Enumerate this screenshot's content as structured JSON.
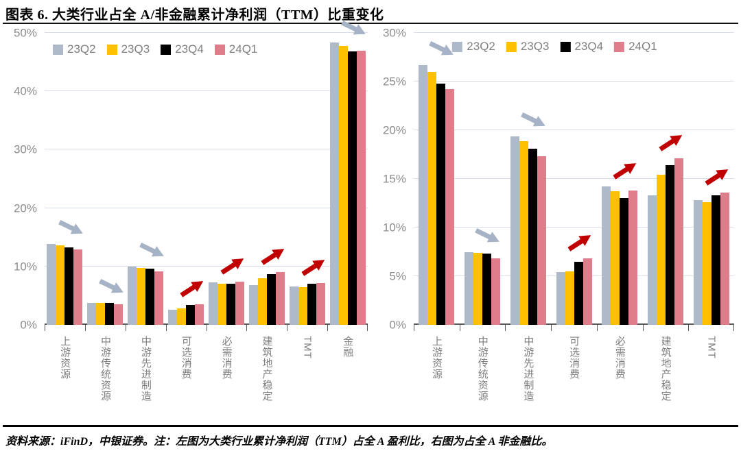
{
  "title": "图表 6. 大类行业占全 A/非金融累计净利润（TTM）比重变化",
  "source_note": "资料来源：iFinD，中银证券。注：左图为大类行业累计净利润（TTM）占全 A 盈利比，右图为占全 A 非金融比。",
  "colors": {
    "grid": "#D8DEE9",
    "axis": "#595959",
    "tick_label": "#8C8C8C",
    "legend_label": "#808080",
    "up_arrow": "#C00000",
    "down_arrow": "#A6B2C6"
  },
  "chart_data": [
    {
      "type": "bar",
      "position": "left",
      "ylim": [
        0,
        50
      ],
      "yticks": [
        "0%",
        "10%",
        "20%",
        "30%",
        "40%",
        "50%"
      ],
      "ytick_values": [
        0,
        10,
        20,
        30,
        40,
        50
      ],
      "grid": true,
      "legend_position": "top-left",
      "categories": [
        "上游资源",
        "中游传统资源",
        "中游先进制造",
        "可选消费",
        "必需消费",
        "建筑地产稳定",
        "TMT",
        "金融"
      ],
      "series": [
        {
          "name": "23Q2",
          "color": "#AEB9CA",
          "values": [
            13.8,
            3.7,
            10.0,
            2.6,
            7.3,
            6.8,
            6.6,
            48.3
          ]
        },
        {
          "name": "23Q3",
          "color": "#FFC000",
          "values": [
            13.6,
            3.7,
            9.8,
            2.8,
            7.1,
            8.0,
            6.5,
            47.8
          ]
        },
        {
          "name": "23Q4",
          "color": "#000000",
          "values": [
            13.3,
            3.8,
            9.6,
            3.4,
            7.0,
            8.7,
            7.0,
            46.8
          ]
        },
        {
          "name": "24Q1",
          "color": "#DF7E8A",
          "values": [
            12.9,
            3.5,
            9.1,
            3.5,
            7.4,
            9.0,
            7.2,
            46.9
          ]
        }
      ],
      "trend_arrows": [
        "down",
        "down",
        "down",
        "up",
        "up",
        "up",
        "up",
        "down"
      ]
    },
    {
      "type": "bar",
      "position": "right",
      "ylim": [
        0,
        30
      ],
      "yticks": [
        "0%",
        "5%",
        "10%",
        "15%",
        "20%",
        "25%",
        "30%"
      ],
      "ytick_values": [
        0,
        5,
        10,
        15,
        20,
        25,
        30
      ],
      "grid": true,
      "legend_position": "top-center",
      "categories": [
        "上游资源",
        "中游传统资源",
        "中游先进制造",
        "可选消费",
        "必需消费",
        "建筑地产稳定",
        "TMT"
      ],
      "series": [
        {
          "name": "23Q2",
          "color": "#AEB9CA",
          "values": [
            26.7,
            7.5,
            19.4,
            5.4,
            14.2,
            13.3,
            12.8
          ]
        },
        {
          "name": "23Q3",
          "color": "#FFC000",
          "values": [
            26.0,
            7.4,
            18.9,
            5.5,
            13.7,
            15.4,
            12.6
          ]
        },
        {
          "name": "23Q4",
          "color": "#000000",
          "values": [
            24.8,
            7.3,
            18.1,
            6.5,
            13.0,
            16.4,
            13.3
          ]
        },
        {
          "name": "24Q1",
          "color": "#DF7E8A",
          "values": [
            24.2,
            6.8,
            17.3,
            6.8,
            13.8,
            17.1,
            13.6
          ]
        }
      ],
      "trend_arrows": [
        "down",
        "down",
        "down",
        "up",
        "up",
        "up",
        "up"
      ]
    }
  ]
}
